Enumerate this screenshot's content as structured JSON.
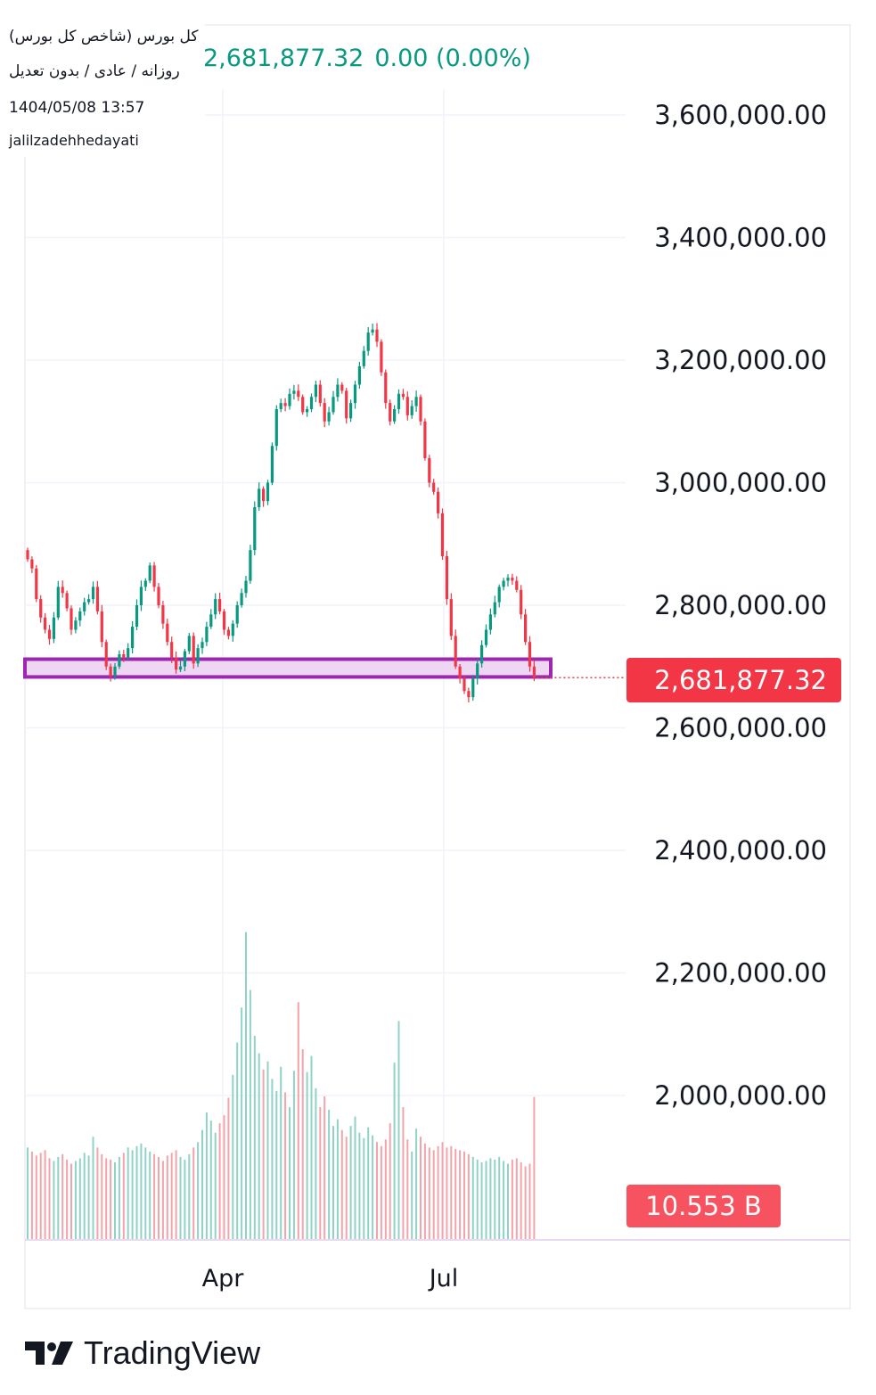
{
  "legend": {
    "symbol_name": "کل بورس (شاخص کل بورس)",
    "interval_info": "روزانه / عادی / بدون تعدیل",
    "datetime": "1404/05/08 13:57",
    "author": "jalilzadehhedayati"
  },
  "quote": {
    "last_price": "2,681,877.32",
    "change": "0.00 (0.00%)"
  },
  "price_tag": "2,681,877.32",
  "volume_tag": "10.553 B",
  "brand": {
    "name": "TradingView"
  },
  "colors": {
    "up": "#089981",
    "down": "#f23645",
    "up_volume": "#8fd3c6",
    "down_volume": "#f5a3a9",
    "zone_fill": "#efd6f2",
    "zone_border": "#9c27b0",
    "grid": "#f0f3fa",
    "axis_text": "#131722"
  },
  "chart_data": {
    "type": "candlestick",
    "y_axis_ticks": [
      "3,600,000.00",
      "3,400,000.00",
      "3,200,000.00",
      "3,000,000.00",
      "2,800,000.00",
      "2,600,000.00",
      "2,400,000.00",
      "2,200,000.00",
      "2,000,000.00"
    ],
    "ylim": [
      1800000,
      3700000
    ],
    "x_axis_ticks": [
      "Apr",
      "Jul"
    ],
    "last_price": 2681877.32,
    "support_zone": [
      2683000,
      2712000
    ],
    "closes": [
      2875000,
      2860000,
      2810000,
      2780000,
      2760000,
      2745000,
      2780000,
      2830000,
      2820000,
      2795000,
      2760000,
      2775000,
      2790000,
      2805000,
      2810000,
      2830000,
      2790000,
      2740000,
      2700000,
      2685000,
      2700000,
      2720000,
      2715000,
      2730000,
      2765000,
      2800000,
      2830000,
      2840000,
      2865000,
      2830000,
      2800000,
      2770000,
      2740000,
      2715000,
      2695000,
      2700000,
      2725000,
      2750000,
      2705000,
      2730000,
      2740000,
      2765000,
      2785000,
      2810000,
      2790000,
      2760000,
      2750000,
      2770000,
      2800000,
      2820000,
      2840000,
      2890000,
      2960000,
      2990000,
      2970000,
      3000000,
      3060000,
      3120000,
      3130000,
      3125000,
      3145000,
      3150000,
      3140000,
      3115000,
      3120000,
      3140000,
      3160000,
      3130000,
      3100000,
      3115000,
      3140000,
      3160000,
      3150000,
      3105000,
      3130000,
      3160000,
      3190000,
      3215000,
      3245000,
      3250000,
      3230000,
      3180000,
      3130000,
      3100000,
      3120000,
      3145000,
      3140000,
      3110000,
      3125000,
      3140000,
      3100000,
      3040000,
      3000000,
      2985000,
      2950000,
      2880000,
      2810000,
      2750000,
      2700000,
      2680000,
      2660000,
      2650000,
      2680000,
      2705000,
      2735000,
      2760000,
      2785000,
      2805000,
      2830000,
      2840000,
      2845000,
      2840000,
      2825000,
      2785000,
      2740000,
      2700000,
      2681877.32
    ],
    "volume_billion": [
      6.8,
      6.5,
      6.2,
      6.4,
      6.6,
      6.0,
      5.8,
      6.1,
      6.3,
      5.9,
      5.6,
      5.8,
      6.0,
      6.4,
      6.2,
      7.6,
      6.8,
      6.3,
      6.0,
      5.9,
      5.7,
      6.1,
      6.4,
      6.8,
      6.6,
      6.9,
      7.1,
      6.8,
      6.5,
      6.3,
      6.1,
      5.8,
      6.2,
      6.4,
      6.6,
      6.1,
      5.9,
      6.3,
      6.8,
      7.2,
      8.1,
      9.4,
      8.8,
      7.9,
      8.6,
      9.2,
      10.5,
      12.2,
      14.6,
      17.2,
      22.8,
      18.5,
      15.1,
      13.8,
      12.6,
      13.2,
      11.9,
      11.0,
      12.8,
      10.9,
      9.8,
      12.5,
      17.6,
      14.1,
      12.4,
      13.6,
      11.2,
      9.8,
      10.6,
      9.6,
      8.4,
      8.9,
      8.1,
      7.6,
      8.4,
      9.1,
      7.9,
      7.5,
      8.3,
      7.7,
      7.2,
      6.9,
      7.4,
      8.6,
      13.1,
      16.2,
      9.8,
      7.4,
      6.5,
      8.2,
      7.6,
      7.1,
      6.8,
      6.6,
      6.9,
      7.2,
      6.8,
      6.9,
      6.7,
      6.6,
      6.5,
      6.3,
      6.1,
      5.9,
      5.7,
      5.8,
      6.0,
      5.9,
      6.1,
      5.8,
      5.6,
      5.9,
      6.0,
      5.7,
      5.4,
      5.6,
      10.553
    ]
  }
}
